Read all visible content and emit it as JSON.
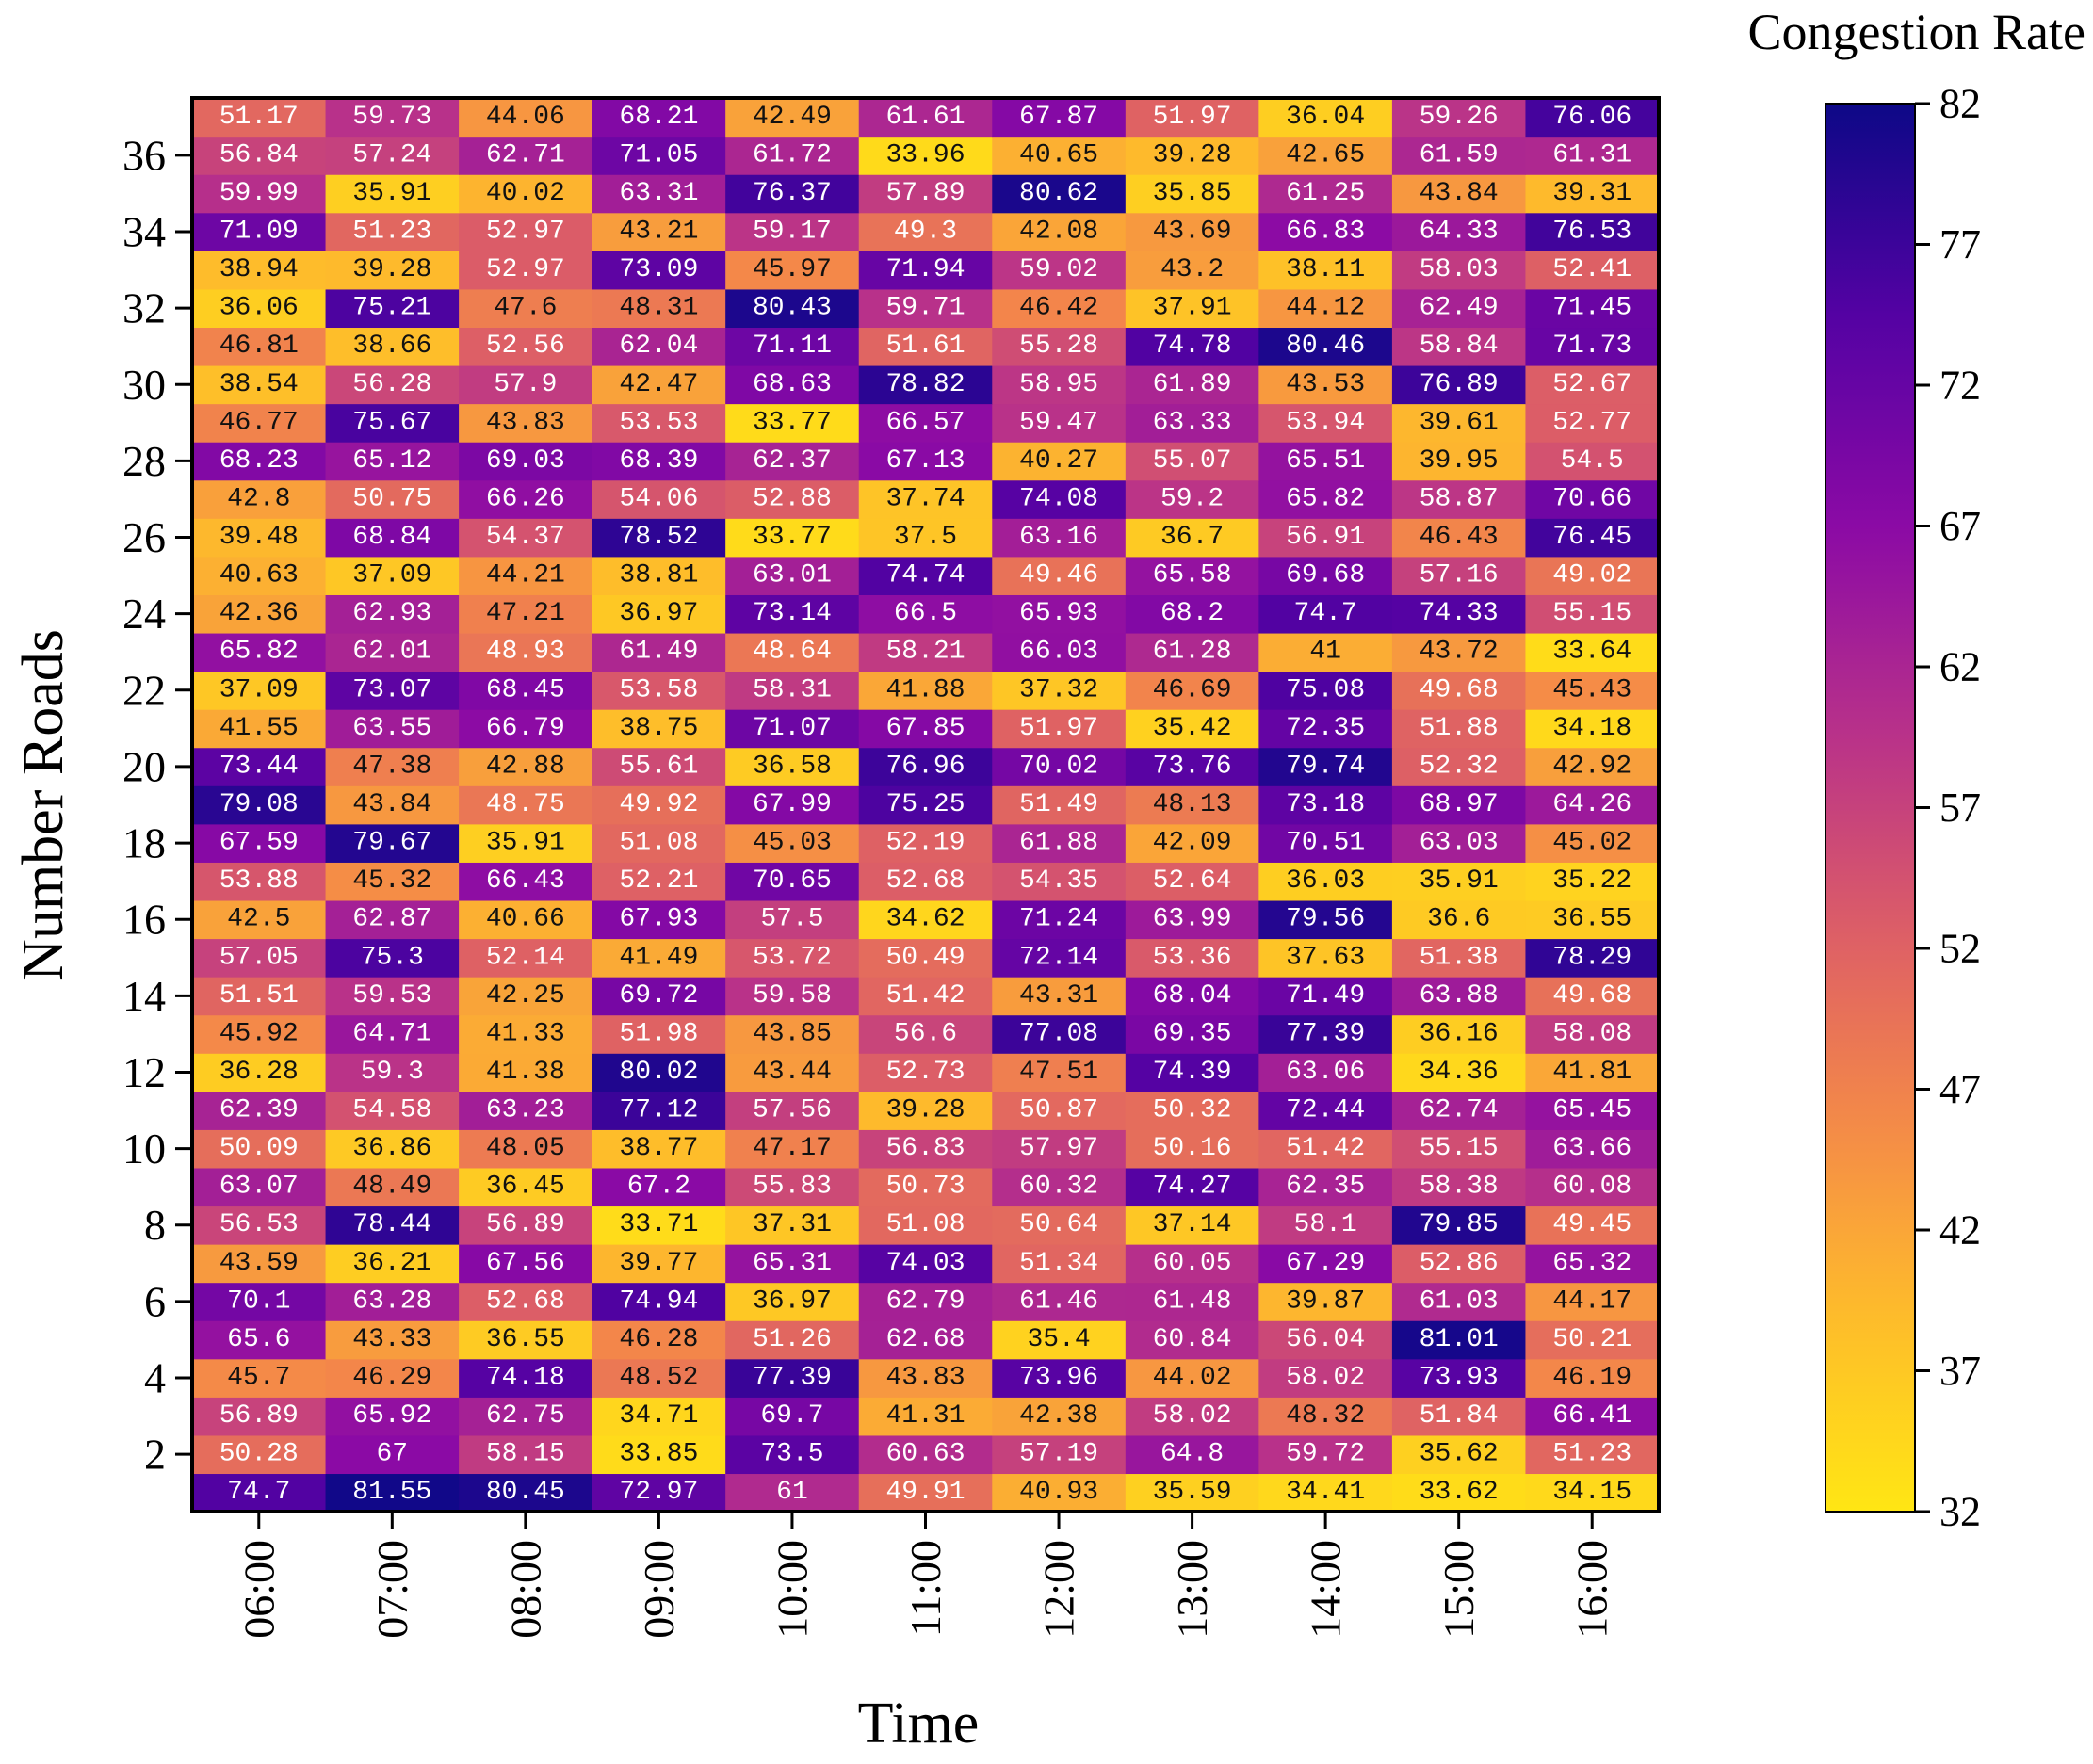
{
  "chart_data": {
    "type": "heatmap",
    "xlabel": "Time",
    "ylabel": "Number Roads",
    "x": [
      "06:00",
      "07:00",
      "08:00",
      "09:00",
      "10:00",
      "11:00",
      "12:00",
      "13:00",
      "14:00",
      "15:00",
      "16:00"
    ],
    "y": [
      1,
      2,
      3,
      4,
      5,
      6,
      7,
      8,
      9,
      10,
      11,
      12,
      13,
      14,
      15,
      16,
      17,
      18,
      19,
      20,
      21,
      22,
      23,
      24,
      25,
      26,
      27,
      28,
      29,
      30,
      31,
      32,
      33,
      34,
      35,
      36,
      37
    ],
    "ytick_labels": [
      "2",
      "4",
      "6",
      "8",
      "10",
      "12",
      "14",
      "16",
      "18",
      "20",
      "22",
      "24",
      "26",
      "28",
      "30",
      "32",
      "34",
      "36"
    ],
    "colorbar": {
      "title": "Congestion Rate",
      "range": [
        32,
        82
      ],
      "ticks": [
        "32",
        "37",
        "42",
        "47",
        "52",
        "57",
        "62",
        "67",
        "72",
        "77",
        "82"
      ],
      "colormap": "plasma_r"
    },
    "values": [
      [
        74.7,
        81.55,
        80.45,
        72.97,
        61,
        49.91,
        40.93,
        35.59,
        34.41,
        33.62,
        34.15
      ],
      [
        50.28,
        67,
        58.15,
        33.85,
        73.5,
        60.63,
        57.19,
        64.8,
        59.72,
        35.62,
        51.23
      ],
      [
        56.89,
        65.92,
        62.75,
        34.71,
        69.7,
        41.31,
        42.38,
        58.02,
        48.32,
        51.84,
        66.41
      ],
      [
        45.7,
        46.29,
        74.18,
        48.52,
        77.39,
        43.83,
        73.96,
        44.02,
        58.02,
        73.93,
        46.19
      ],
      [
        65.6,
        43.33,
        36.55,
        46.28,
        51.26,
        62.68,
        35.4,
        60.84,
        56.04,
        81.01,
        50.21
      ],
      [
        70.1,
        63.28,
        52.68,
        74.94,
        36.97,
        62.79,
        61.46,
        61.48,
        39.87,
        61.03,
        44.17
      ],
      [
        43.59,
        36.21,
        67.56,
        39.77,
        65.31,
        74.03,
        51.34,
        60.05,
        67.29,
        52.86,
        65.32
      ],
      [
        56.53,
        78.44,
        56.89,
        33.71,
        37.31,
        51.08,
        50.64,
        37.14,
        58.1,
        79.85,
        49.45
      ],
      [
        63.07,
        48.49,
        36.45,
        67.2,
        55.83,
        50.73,
        60.32,
        74.27,
        62.35,
        58.38,
        60.08
      ],
      [
        50.09,
        36.86,
        48.05,
        38.77,
        47.17,
        56.83,
        57.97,
        50.16,
        51.42,
        55.15,
        63.66
      ],
      [
        62.39,
        54.58,
        63.23,
        77.12,
        57.56,
        39.28,
        50.87,
        50.32,
        72.44,
        62.74,
        65.45
      ],
      [
        36.28,
        59.3,
        41.38,
        80.02,
        43.44,
        52.73,
        47.51,
        74.39,
        63.06,
        34.36,
        41.81
      ],
      [
        45.92,
        64.71,
        41.33,
        51.98,
        43.85,
        56.6,
        77.08,
        69.35,
        77.39,
        36.16,
        58.08
      ],
      [
        51.51,
        59.53,
        42.25,
        69.72,
        59.58,
        51.42,
        43.31,
        68.04,
        71.49,
        63.88,
        49.68
      ],
      [
        57.05,
        75.3,
        52.14,
        41.49,
        53.72,
        50.49,
        72.14,
        53.36,
        37.63,
        51.38,
        78.29
      ],
      [
        42.5,
        62.87,
        40.66,
        67.93,
        57.5,
        34.62,
        71.24,
        63.99,
        79.56,
        36.6,
        36.55
      ],
      [
        53.88,
        45.32,
        66.43,
        52.21,
        70.65,
        52.68,
        54.35,
        52.64,
        36.03,
        35.91,
        35.22
      ],
      [
        67.59,
        79.67,
        35.91,
        51.08,
        45.03,
        52.19,
        61.88,
        42.09,
        70.51,
        63.03,
        45.02
      ],
      [
        79.08,
        43.84,
        48.75,
        49.92,
        67.99,
        75.25,
        51.49,
        48.13,
        73.18,
        68.97,
        64.26
      ],
      [
        73.44,
        47.38,
        42.88,
        55.61,
        36.58,
        76.96,
        70.02,
        73.76,
        79.74,
        52.32,
        42.92
      ],
      [
        41.55,
        63.55,
        66.79,
        38.75,
        71.07,
        67.85,
        51.97,
        35.42,
        72.35,
        51.88,
        34.18
      ],
      [
        37.09,
        73.07,
        68.45,
        53.58,
        58.31,
        41.88,
        37.32,
        46.69,
        75.08,
        49.68,
        45.43
      ],
      [
        65.82,
        62.01,
        48.93,
        61.49,
        48.64,
        58.21,
        66.03,
        61.28,
        41,
        43.72,
        33.64
      ],
      [
        42.36,
        62.93,
        47.21,
        36.97,
        73.14,
        66.5,
        65.93,
        68.2,
        74.7,
        74.33,
        55.15
      ],
      [
        40.63,
        37.09,
        44.21,
        38.81,
        63.01,
        74.74,
        49.46,
        65.58,
        69.68,
        57.16,
        49.02
      ],
      [
        39.48,
        68.84,
        54.37,
        78.52,
        33.77,
        37.5,
        63.16,
        36.7,
        56.91,
        46.43,
        76.45
      ],
      [
        42.8,
        50.75,
        66.26,
        54.06,
        52.88,
        37.74,
        74.08,
        59.2,
        65.82,
        58.87,
        70.66
      ],
      [
        68.23,
        65.12,
        69.03,
        68.39,
        62.37,
        67.13,
        40.27,
        55.07,
        65.51,
        39.95,
        54.5
      ],
      [
        46.77,
        75.67,
        43.83,
        53.53,
        33.77,
        66.57,
        59.47,
        63.33,
        53.94,
        39.61,
        52.77
      ],
      [
        38.54,
        56.28,
        57.9,
        42.47,
        68.63,
        78.82,
        58.95,
        61.89,
        43.53,
        76.89,
        52.67
      ],
      [
        46.81,
        38.66,
        52.56,
        62.04,
        71.11,
        51.61,
        55.28,
        74.78,
        80.46,
        58.84,
        71.73
      ],
      [
        36.06,
        75.21,
        47.6,
        48.31,
        80.43,
        59.71,
        46.42,
        37.91,
        44.12,
        62.49,
        71.45
      ],
      [
        38.94,
        39.28,
        52.97,
        73.09,
        45.97,
        71.94,
        59.02,
        43.2,
        38.11,
        58.03,
        52.41
      ],
      [
        71.09,
        51.23,
        52.97,
        43.21,
        59.17,
        49.3,
        42.08,
        43.69,
        66.83,
        64.33,
        76.53
      ],
      [
        59.99,
        35.91,
        40.02,
        63.31,
        76.37,
        57.89,
        80.62,
        35.85,
        61.25,
        43.84,
        39.31
      ],
      [
        56.84,
        57.24,
        62.71,
        71.05,
        61.72,
        33.96,
        40.65,
        39.28,
        42.65,
        61.59,
        61.31
      ],
      [
        51.17,
        59.73,
        44.06,
        68.21,
        42.49,
        61.61,
        67.87,
        51.97,
        36.04,
        59.26,
        76.06
      ]
    ]
  }
}
